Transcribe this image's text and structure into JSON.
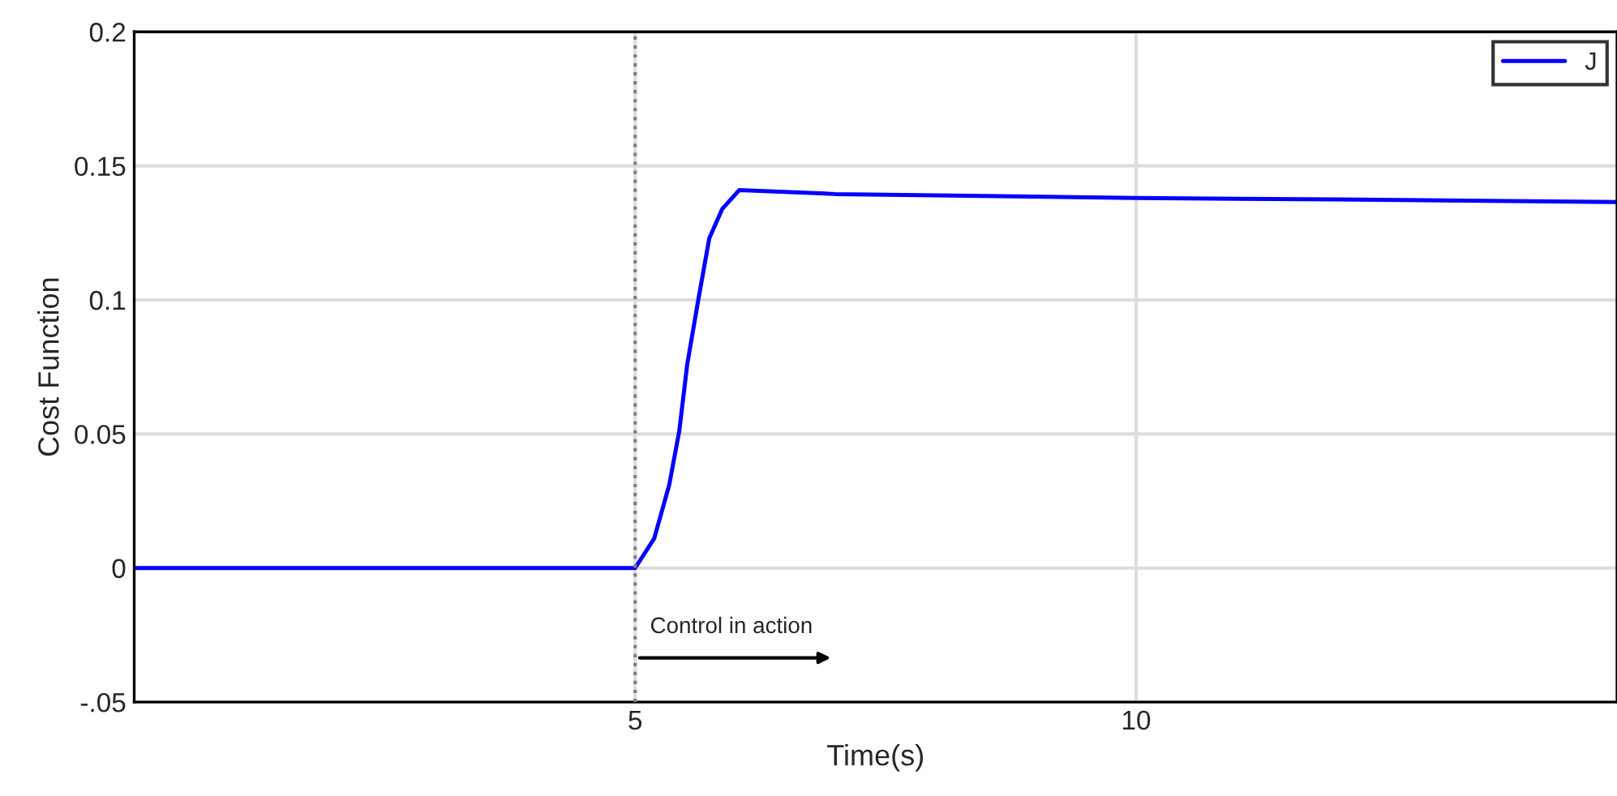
{
  "chart_data": {
    "type": "line",
    "xlabel": "Time(s)",
    "ylabel": "Cost Function",
    "x": [
      0,
      2,
      4,
      5,
      5.19,
      5.34,
      5.44,
      5.52,
      5.63,
      5.74,
      5.87,
      6.04,
      7,
      8,
      10,
      12,
      14.8
    ],
    "series": [
      {
        "name": "J",
        "color": "#0000ff",
        "values": [
          0,
          0,
          0,
          0,
          0.011,
          0.031,
          0.051,
          0.076,
          0.1,
          0.123,
          0.134,
          0.141,
          0.1395,
          0.139,
          0.138,
          0.1375,
          0.1365
        ]
      }
    ],
    "xlim": [
      0,
      14.8
    ],
    "ylim": [
      -0.05,
      0.2
    ],
    "xticks": [
      5,
      10
    ],
    "yticks": [
      {
        "value": -0.05,
        "label": "-.05"
      },
      0,
      0.05,
      0.1,
      0.15,
      0.2
    ],
    "grid": true,
    "legend": "top right",
    "line_style": "solid",
    "marker": "none",
    "ref_lines": [
      {
        "axis": "x",
        "value": 5,
        "color": "#808080",
        "line_style": "dotted"
      }
    ],
    "annotations": [
      {
        "text": "Control in action",
        "x": 5,
        "y": -0.0335
      }
    ]
  }
}
